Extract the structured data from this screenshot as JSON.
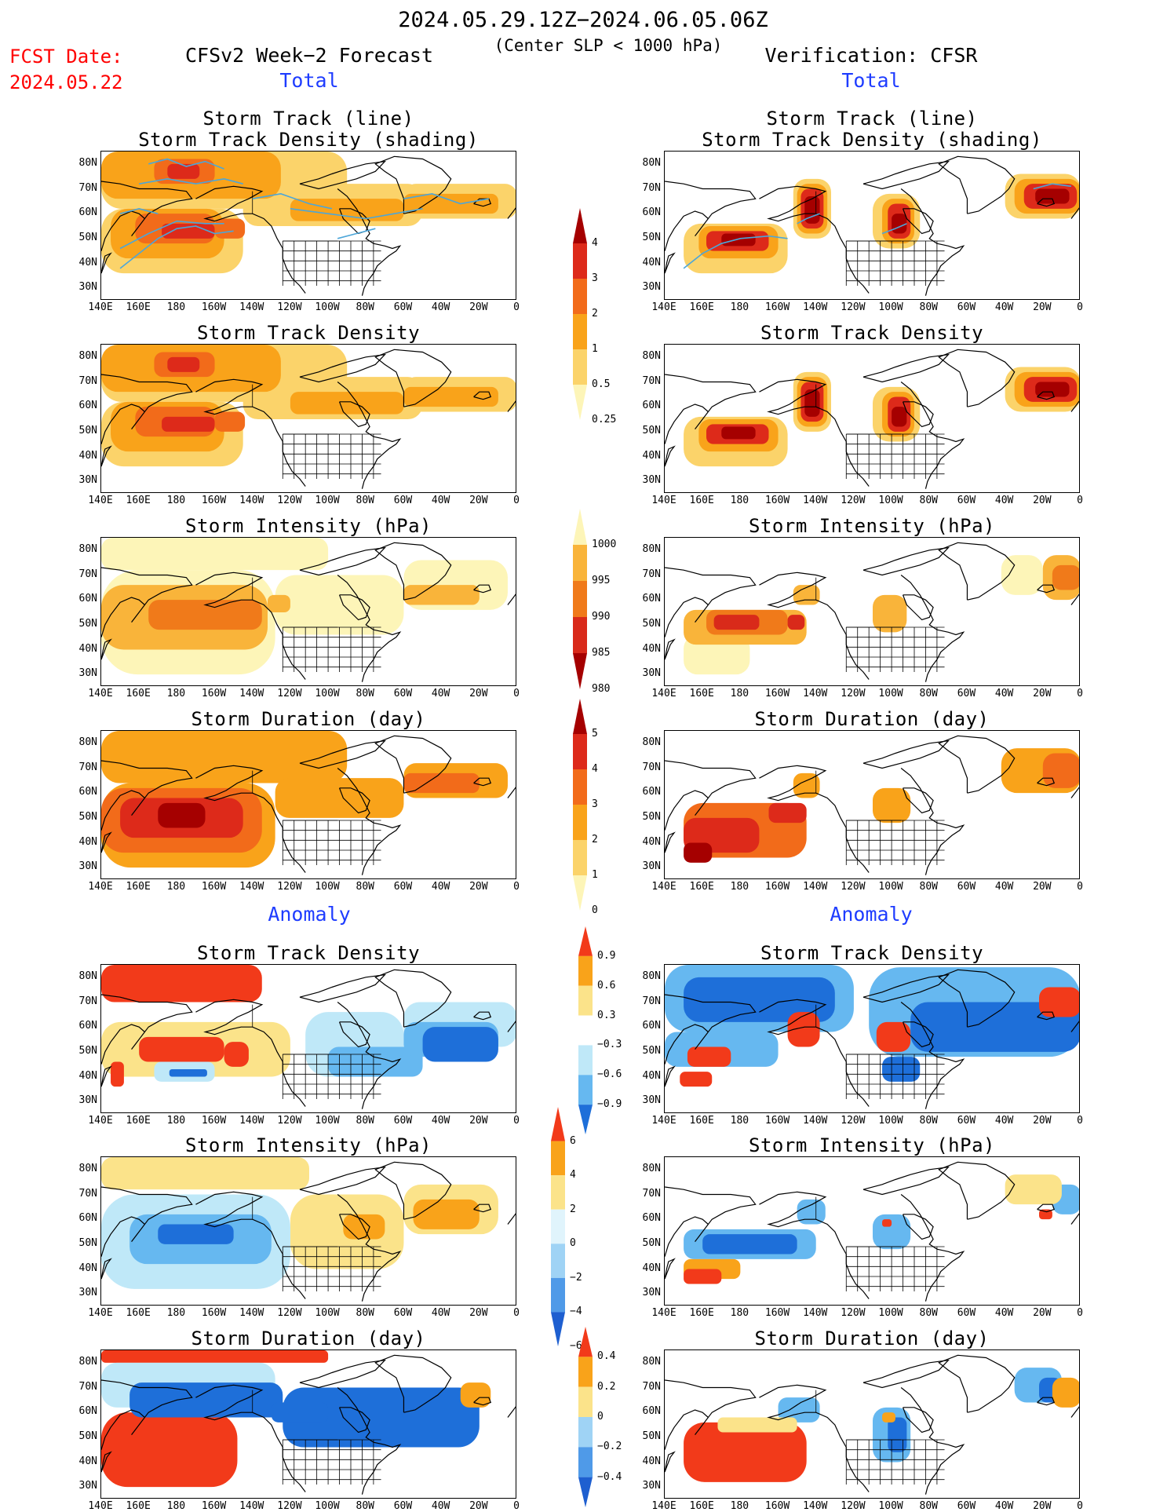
{
  "header": {
    "date_range": "2024.05.29.12Z−2024.06.05.06Z",
    "subtitle": "(Center SLP < 1000 hPa)",
    "fcst_label": "FCST Date:",
    "fcst_date": "2024.05.22",
    "left_title": "CFSv2 Week−2 Forecast",
    "right_title": "Verification: CFSR",
    "total_label": "Total",
    "anomaly_label": "Anomaly"
  },
  "panels": [
    {
      "id": "track",
      "title_lines": [
        "Storm Track (line)",
        "Storm Track Density (shading)"
      ]
    },
    {
      "id": "density",
      "title_lines": [
        "Storm Track Density"
      ]
    },
    {
      "id": "intensity",
      "title_lines": [
        "Storm Intensity (hPa)"
      ]
    },
    {
      "id": "duration",
      "title_lines": [
        "Storm Duration (day)"
      ]
    },
    {
      "id": "anom_density",
      "title_lines": [
        "Storm Track Density"
      ]
    },
    {
      "id": "anom_intensity",
      "title_lines": [
        "Storm Intensity (hPa)"
      ]
    },
    {
      "id": "anom_duration",
      "title_lines": [
        "Storm Duration (day)"
      ]
    }
  ],
  "axes": {
    "lat_labels": [
      "80N",
      "70N",
      "60N",
      "50N",
      "40N",
      "30N"
    ],
    "lon_labels": [
      "140E",
      "160E",
      "180",
      "160W",
      "140W",
      "120W",
      "100W",
      "80W",
      "60W",
      "40W",
      "20W",
      "0"
    ]
  },
  "colorbars": {
    "density_total": {
      "labels": [
        "4",
        "3",
        "2",
        "1",
        "0.5",
        "0.25"
      ],
      "colors": [
        "#a50000",
        "#dd2a1a",
        "#f26b1a",
        "#f9a31a",
        "#fbd36a",
        "#fdf5b8"
      ]
    },
    "intensity_total": {
      "labels": [
        "1000",
        "995",
        "990",
        "985",
        "980"
      ],
      "colors": [
        "#fdf5b8",
        "#f9b43a",
        "#f07a1a",
        "#d92a1a",
        "#a50000"
      ]
    },
    "duration_total": {
      "labels": [
        "5",
        "4",
        "3",
        "2",
        "1",
        "0"
      ],
      "colors": [
        "#a50000",
        "#dd2a1a",
        "#f26b1a",
        "#f9a31a",
        "#fbd36a",
        "#fdf5b8"
      ]
    },
    "density_anom": {
      "labels": [
        "0.9",
        "0.6",
        "0.3",
        "−0.3",
        "−0.6",
        "−0.9"
      ],
      "colors": [
        "#f23a1a",
        "#f9a31a",
        "#fbe38a",
        "#ffffff",
        "#bfe8f8",
        "#66b8f0",
        "#1e6fd9"
      ]
    },
    "intensity_anom": {
      "labels": [
        "6",
        "4",
        "2",
        "0",
        "−2",
        "−4",
        "−6"
      ],
      "colors": [
        "#f23a1a",
        "#f9a31a",
        "#fbe38a",
        "#e0f4fc",
        "#9fd3f5",
        "#4f9ae8",
        "#1e5fd0"
      ]
    },
    "duration_anom": {
      "labels": [
        "0.4",
        "0.2",
        "0",
        "−0.2",
        "−0.4"
      ],
      "colors": [
        "#f23a1a",
        "#f9a31a",
        "#fbe38a",
        "#9fd3f5",
        "#4f9ae8",
        "#1e5fd0"
      ]
    }
  }
}
